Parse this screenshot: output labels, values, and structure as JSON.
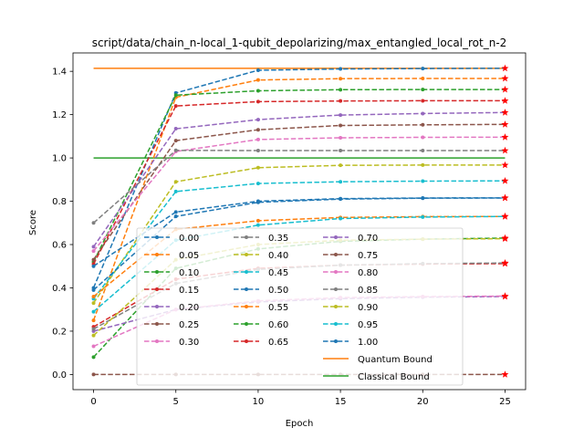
{
  "chart_data": {
    "type": "line",
    "title": "script/data/chain_n-local_1-qubit_depolarizing/max_entangled_local_rot_n-2",
    "xlabel": "Epoch",
    "ylabel": "Score",
    "xlim": [
      -1.25,
      26.25
    ],
    "ylim": [
      -0.07,
      1.485
    ],
    "x": [
      0,
      5,
      10,
      15,
      20,
      25
    ],
    "xticks": [
      0,
      5,
      10,
      15,
      20,
      25
    ],
    "yticks": [
      0.0,
      0.2,
      0.4,
      0.6,
      0.8,
      1.0,
      1.2,
      1.4
    ],
    "grid": false,
    "legend": {
      "placement": "lower-center",
      "columns": 3
    },
    "series": [
      {
        "name": "0.00",
        "color": "#1f77b4",
        "style": "dashed",
        "values": [
          0.4,
          1.3,
          1.405,
          1.411,
          1.413,
          1.414
        ]
      },
      {
        "name": "0.05",
        "color": "#ff7f0e",
        "style": "dashed",
        "values": [
          0.25,
          1.28,
          1.36,
          1.366,
          1.367,
          1.367
        ]
      },
      {
        "name": "0.10",
        "color": "#2ca02c",
        "style": "dashed",
        "values": [
          0.52,
          1.29,
          1.31,
          1.315,
          1.316,
          1.316
        ]
      },
      {
        "name": "0.15",
        "color": "#d62728",
        "style": "dashed",
        "values": [
          0.51,
          1.24,
          1.26,
          1.263,
          1.264,
          1.264
        ]
      },
      {
        "name": "0.20",
        "color": "#9467bd",
        "style": "dashed",
        "values": [
          0.59,
          1.135,
          1.177,
          1.198,
          1.205,
          1.21
        ]
      },
      {
        "name": "0.25",
        "color": "#8c564b",
        "style": "dashed",
        "values": [
          0.53,
          1.08,
          1.13,
          1.15,
          1.153,
          1.155
        ]
      },
      {
        "name": "0.30",
        "color": "#e377c2",
        "style": "dashed",
        "values": [
          0.57,
          1.03,
          1.085,
          1.093,
          1.095,
          1.096
        ]
      },
      {
        "name": "0.35",
        "color": "#7f7f7f",
        "style": "dashed",
        "values": [
          0.7,
          1.035,
          1.034,
          1.034,
          1.034,
          1.034
        ]
      },
      {
        "name": "0.40",
        "color": "#bcbd22",
        "style": "dashed",
        "values": [
          0.33,
          0.89,
          0.955,
          0.966,
          0.967,
          0.967
        ]
      },
      {
        "name": "0.45",
        "color": "#17becf",
        "style": "dashed",
        "values": [
          0.35,
          0.845,
          0.882,
          0.89,
          0.893,
          0.894
        ]
      },
      {
        "name": "0.50",
        "color": "#1f77b4",
        "style": "dashed",
        "values": [
          0.5,
          0.75,
          0.8,
          0.812,
          0.815,
          0.816
        ]
      },
      {
        "name": "0.55",
        "color": "#ff7f0e",
        "style": "dashed",
        "values": [
          0.36,
          0.67,
          0.71,
          0.725,
          0.729,
          0.73
        ]
      },
      {
        "name": "0.60",
        "color": "#2ca02c",
        "style": "dashed",
        "values": [
          0.08,
          0.49,
          0.58,
          0.615,
          0.625,
          0.63
        ]
      },
      {
        "name": "0.65",
        "color": "#d62728",
        "style": "dashed",
        "values": [
          0.22,
          0.44,
          0.49,
          0.505,
          0.51,
          0.512
        ]
      },
      {
        "name": "0.70",
        "color": "#9467bd",
        "style": "dashed",
        "values": [
          0.2,
          0.3,
          0.335,
          0.35,
          0.357,
          0.36
        ]
      },
      {
        "name": "0.75",
        "color": "#8c564b",
        "style": "dashed",
        "values": [
          0.0,
          0.0,
          0.0,
          0.0,
          0.0,
          0.0
        ]
      },
      {
        "name": "0.80",
        "color": "#e377c2",
        "style": "dashed",
        "values": [
          0.13,
          0.3,
          0.34,
          0.355,
          0.36,
          0.362
        ]
      },
      {
        "name": "0.85",
        "color": "#7f7f7f",
        "style": "dashed",
        "values": [
          0.21,
          0.42,
          0.485,
          0.505,
          0.512,
          0.515
        ]
      },
      {
        "name": "0.90",
        "color": "#bcbd22",
        "style": "dashed",
        "values": [
          0.18,
          0.53,
          0.6,
          0.62,
          0.625,
          0.627
        ]
      },
      {
        "name": "0.95",
        "color": "#17becf",
        "style": "dashed",
        "values": [
          0.29,
          0.62,
          0.69,
          0.72,
          0.727,
          0.73
        ]
      },
      {
        "name": "1.00",
        "color": "#1f77b4",
        "style": "dashed",
        "values": [
          0.39,
          0.73,
          0.795,
          0.81,
          0.814,
          0.815
        ]
      }
    ],
    "reference_lines": [
      {
        "name": "Quantum Bound",
        "color": "#ff7f0e",
        "value": 1.414
      },
      {
        "name": "Classical Bound",
        "color": "#2ca02c",
        "value": 1.0
      }
    ],
    "final_marker_color": "#ff0000"
  }
}
